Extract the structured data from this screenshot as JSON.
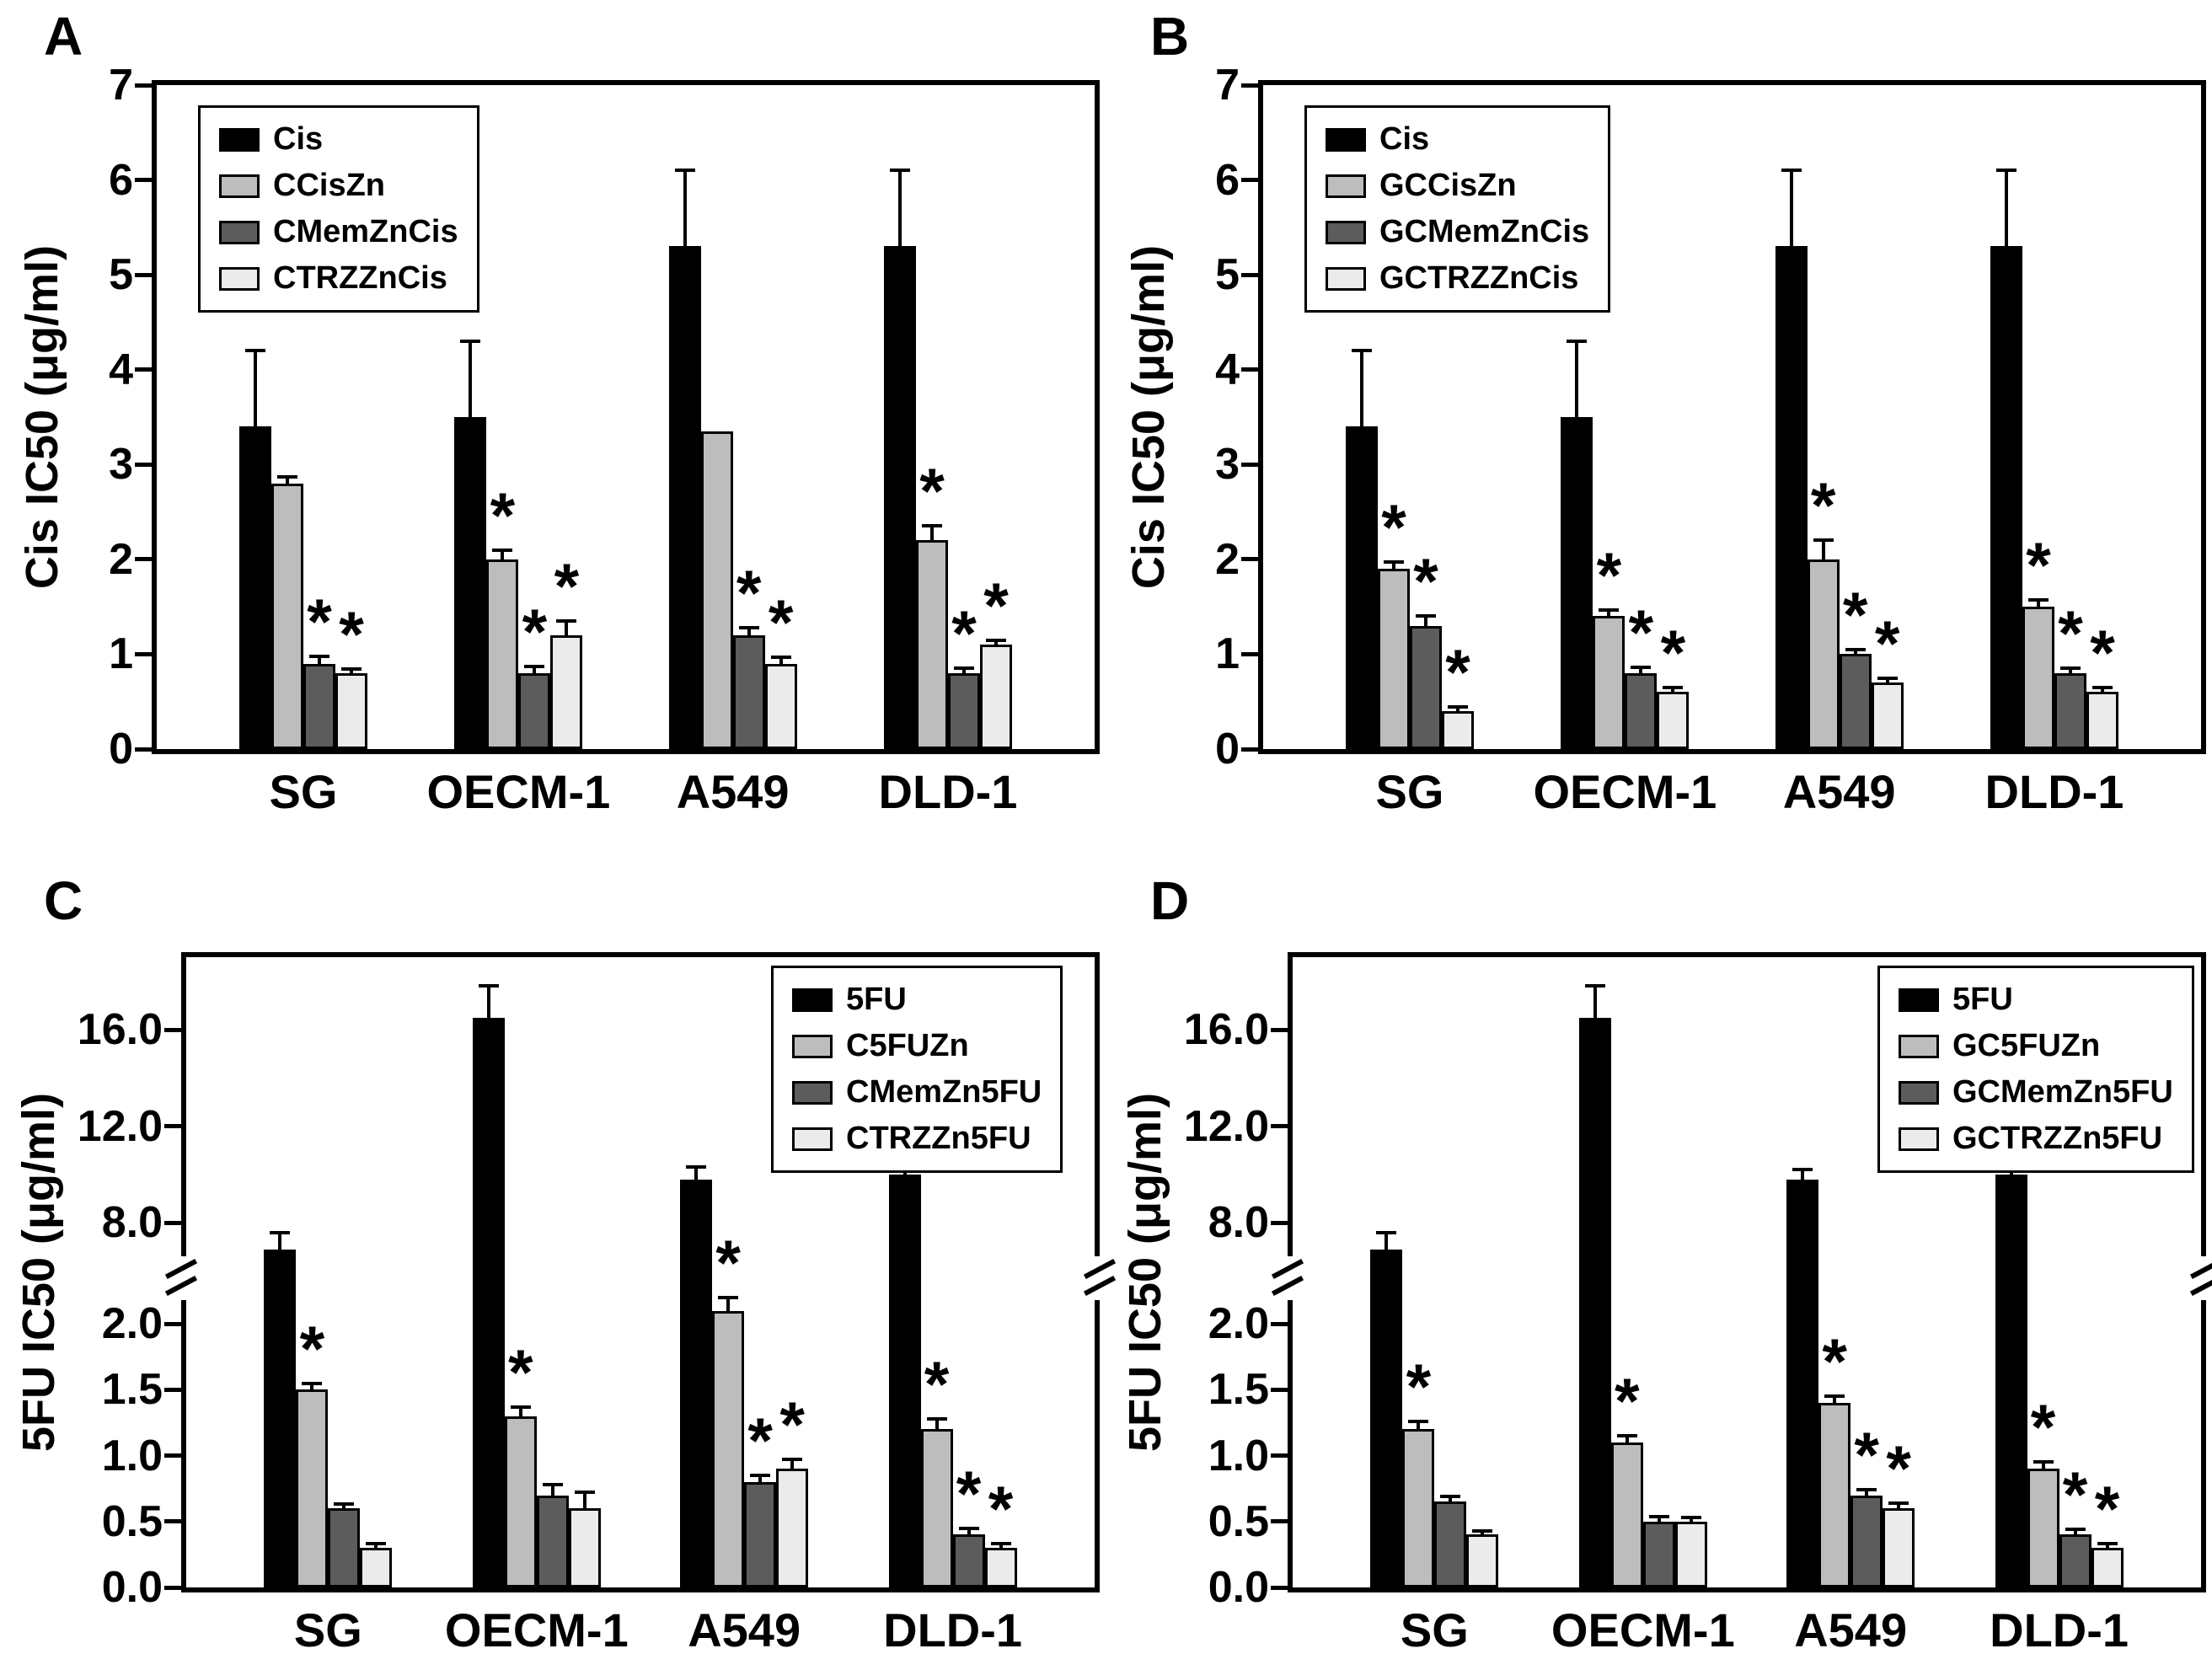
{
  "figure": {
    "background": "#ffffff",
    "sig_marker": "*",
    "series_colors": [
      "#000000",
      "#bdbdbd",
      "#5c5c5c",
      "#ebebeb"
    ],
    "axis_color": "#000000",
    "panels": [
      "A",
      "B",
      "C",
      "D"
    ]
  },
  "chart_data": [
    {
      "panel_label": "A",
      "type": "bar",
      "ylabel": "Cis IC50 (μg/ml)",
      "xlabel": "",
      "ylim": [
        0,
        7
      ],
      "grid": false,
      "legend_position": "top-left",
      "yticks": [
        {
          "value": 0,
          "label": "0"
        },
        {
          "value": 1,
          "label": "1"
        },
        {
          "value": 2,
          "label": "2"
        },
        {
          "value": 3,
          "label": "3"
        },
        {
          "value": 4,
          "label": "4"
        },
        {
          "value": 5,
          "label": "5"
        },
        {
          "value": 6,
          "label": "6"
        },
        {
          "value": 7,
          "label": "7"
        }
      ],
      "categories": [
        "SG",
        "OECM-1",
        "A549",
        "DLD-1"
      ],
      "series": [
        {
          "name": "Cis",
          "values": [
            3.4,
            3.5,
            5.3,
            5.3
          ],
          "errors": [
            0.8,
            0.8,
            0.8,
            0.8
          ],
          "sig": [
            false,
            false,
            false,
            false
          ]
        },
        {
          "name": "CCisZn",
          "values": [
            2.8,
            2.0,
            3.35,
            2.2
          ],
          "errors": [
            0.07,
            0.1,
            0,
            0.15
          ],
          "sig": [
            false,
            true,
            false,
            true
          ]
        },
        {
          "name": "CMemZnCis",
          "values": [
            0.9,
            0.8,
            1.2,
            0.8
          ],
          "errors": [
            0.08,
            0.07,
            0.08,
            0.05
          ],
          "sig": [
            true,
            true,
            true,
            true
          ]
        },
        {
          "name": "CTRZZnCis",
          "values": [
            0.8,
            1.2,
            0.9,
            1.1
          ],
          "errors": [
            0.04,
            0.15,
            0.07,
            0.05
          ],
          "sig": [
            true,
            true,
            true,
            true
          ]
        }
      ]
    },
    {
      "panel_label": "B",
      "type": "bar",
      "ylabel": "Cis IC50 (μg/ml)",
      "xlabel": "",
      "ylim": [
        0,
        7
      ],
      "grid": false,
      "legend_position": "top-left",
      "yticks": [
        {
          "value": 0,
          "label": "0"
        },
        {
          "value": 1,
          "label": "1"
        },
        {
          "value": 2,
          "label": "2"
        },
        {
          "value": 3,
          "label": "3"
        },
        {
          "value": 4,
          "label": "4"
        },
        {
          "value": 5,
          "label": "5"
        },
        {
          "value": 6,
          "label": "6"
        },
        {
          "value": 7,
          "label": "7"
        }
      ],
      "categories": [
        "SG",
        "OECM-1",
        "A549",
        "DLD-1"
      ],
      "series": [
        {
          "name": "Cis",
          "values": [
            3.4,
            3.5,
            5.3,
            5.3
          ],
          "errors": [
            0.8,
            0.8,
            0.8,
            0.8
          ],
          "sig": [
            false,
            false,
            false,
            false
          ]
        },
        {
          "name": "GCCisZn",
          "values": [
            1.9,
            1.4,
            2.0,
            1.5
          ],
          "errors": [
            0.07,
            0.07,
            0.2,
            0.07
          ],
          "sig": [
            true,
            true,
            true,
            true
          ]
        },
        {
          "name": "GCMemZnCis",
          "values": [
            1.3,
            0.8,
            1.0,
            0.8
          ],
          "errors": [
            0.1,
            0.06,
            0.05,
            0.05
          ],
          "sig": [
            true,
            true,
            true,
            true
          ]
        },
        {
          "name": "GCTRZZnCis",
          "values": [
            0.4,
            0.6,
            0.7,
            0.6
          ],
          "errors": [
            0.04,
            0.05,
            0.05,
            0.05
          ],
          "sig": [
            true,
            true,
            true,
            true
          ]
        }
      ]
    },
    {
      "panel_label": "C",
      "type": "bar",
      "ylabel": "5FU IC50 (μg/ml)",
      "xlabel": "",
      "ylim": [
        0,
        19
      ],
      "grid": false,
      "legend_position": "top-right",
      "axis_break": {
        "segments": [
          {
            "domain": [
              0,
              2.2
            ],
            "range": [
              0,
              0.46
            ]
          },
          {
            "domain": [
              7.0,
              19.0
            ],
            "range": [
              0.54,
              1.0
            ]
          }
        ],
        "break_frac": 0.49
      },
      "yticks": [
        {
          "value": 0,
          "label": "0.0"
        },
        {
          "value": 0.5,
          "label": "0.5"
        },
        {
          "value": 1,
          "label": "1.0"
        },
        {
          "value": 1.5,
          "label": "1.5"
        },
        {
          "value": 2,
          "label": "2.0"
        },
        {
          "value": 8,
          "label": "8.0"
        },
        {
          "value": 12,
          "label": "12.0"
        },
        {
          "value": 16,
          "label": "16.0"
        }
      ],
      "categories": [
        "SG",
        "OECM-1",
        "A549",
        "DLD-1"
      ],
      "series": [
        {
          "name": "5FU",
          "values": [
            6.8,
            16.5,
            9.8,
            10.0
          ],
          "errors": [
            0.8,
            1.3,
            0.5,
            1.0
          ],
          "sig": [
            false,
            false,
            false,
            false
          ]
        },
        {
          "name": "C5FUZn",
          "values": [
            1.5,
            1.3,
            2.1,
            1.2
          ],
          "errors": [
            0.05,
            0.07,
            0.1,
            0.08
          ],
          "sig": [
            true,
            true,
            true,
            true
          ]
        },
        {
          "name": "CMemZn5FU",
          "values": [
            0.6,
            0.7,
            0.8,
            0.4
          ],
          "errors": [
            0.03,
            0.08,
            0.05,
            0.05
          ],
          "sig": [
            false,
            false,
            true,
            true
          ]
        },
        {
          "name": "CTRZZn5FU",
          "values": [
            0.3,
            0.6,
            0.9,
            0.3
          ],
          "errors": [
            0.03,
            0.12,
            0.07,
            0.03
          ],
          "sig": [
            false,
            false,
            true,
            true
          ]
        }
      ]
    },
    {
      "panel_label": "D",
      "type": "bar",
      "ylabel": "5FU IC50 (μg/ml)",
      "xlabel": "",
      "ylim": [
        0,
        19
      ],
      "grid": false,
      "legend_position": "top-right",
      "axis_break": {
        "segments": [
          {
            "domain": [
              0,
              2.2
            ],
            "range": [
              0,
              0.46
            ]
          },
          {
            "domain": [
              7.0,
              19.0
            ],
            "range": [
              0.54,
              1.0
            ]
          }
        ],
        "break_frac": 0.49
      },
      "yticks": [
        {
          "value": 0,
          "label": "0.0"
        },
        {
          "value": 0.5,
          "label": "0.5"
        },
        {
          "value": 1,
          "label": "1.0"
        },
        {
          "value": 1.5,
          "label": "1.5"
        },
        {
          "value": 2,
          "label": "2.0"
        },
        {
          "value": 8,
          "label": "8.0"
        },
        {
          "value": 12,
          "label": "12.0"
        },
        {
          "value": 16,
          "label": "16.0"
        }
      ],
      "categories": [
        "SG",
        "OECM-1",
        "A549",
        "DLD-1"
      ],
      "series": [
        {
          "name": "5FU",
          "values": [
            6.8,
            16.5,
            9.8,
            10.0
          ],
          "errors": [
            0.8,
            1.3,
            0.4,
            1.0
          ],
          "sig": [
            false,
            false,
            false,
            false
          ]
        },
        {
          "name": "GC5FUZn",
          "values": [
            1.2,
            1.1,
            1.4,
            0.9
          ],
          "errors": [
            0.06,
            0.05,
            0.05,
            0.05
          ],
          "sig": [
            true,
            true,
            true,
            true
          ]
        },
        {
          "name": "GCMemZn5FU",
          "values": [
            0.65,
            0.5,
            0.7,
            0.4
          ],
          "errors": [
            0.04,
            0.04,
            0.04,
            0.04
          ],
          "sig": [
            false,
            false,
            true,
            true
          ]
        },
        {
          "name": "GCTRZZn5FU",
          "values": [
            0.4,
            0.5,
            0.6,
            0.3
          ],
          "errors": [
            0.03,
            0.03,
            0.04,
            0.03
          ],
          "sig": [
            false,
            false,
            true,
            true
          ]
        }
      ]
    }
  ]
}
